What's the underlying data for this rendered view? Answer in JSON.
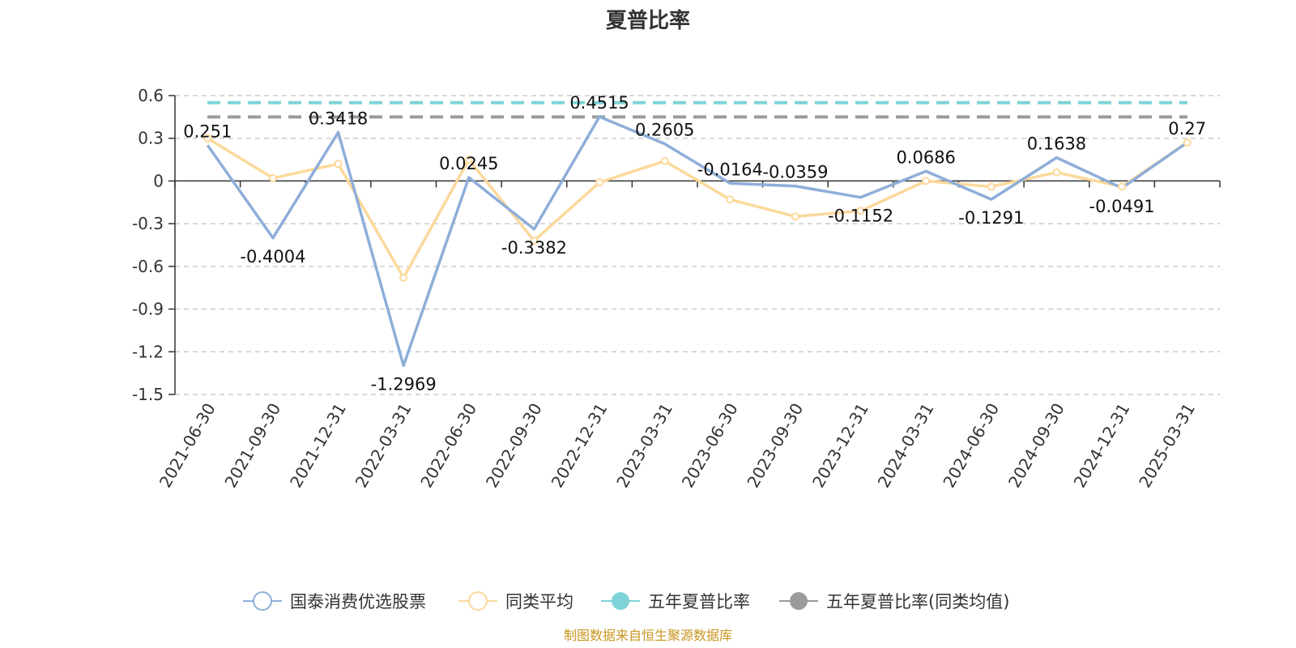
{
  "chart_data": {
    "type": "line",
    "title": "夏普比率",
    "categories": [
      "2021-06-30",
      "2021-09-30",
      "2021-12-31",
      "2022-03-31",
      "2022-06-30",
      "2022-09-30",
      "2022-12-31",
      "2023-03-31",
      "2023-06-30",
      "2023-09-30",
      "2023-12-31",
      "2024-03-31",
      "2024-06-30",
      "2024-09-30",
      "2024-12-31",
      "2025-03-31"
    ],
    "yticks": [
      "0.6",
      "0.3",
      "0",
      "-0.3",
      "-0.6",
      "-0.9",
      "-1.2",
      "-1.5"
    ],
    "ytick_values": [
      0.6,
      0.3,
      0,
      -0.3,
      -0.6,
      -0.9,
      -1.2,
      -1.5
    ],
    "ylim": [
      -1.5,
      0.6
    ],
    "grid": true,
    "legend_position": "bottom",
    "series": [
      {
        "name": "国泰消费优选股票",
        "color": "#8eaed9",
        "values": [
          0.251,
          -0.4004,
          0.3418,
          -1.2969,
          0.0245,
          -0.3382,
          0.4515,
          0.2605,
          -0.0164,
          -0.0359,
          -0.1152,
          0.0686,
          -0.1291,
          0.1638,
          -0.0491,
          0.27
        ],
        "labels": [
          "0.251",
          "-0.4004",
          "0.3418",
          "-1.2969",
          "0.0245",
          "-0.3382",
          "0.4515",
          "0.2605",
          "-0.0164",
          "-0.0359",
          "-0.1152",
          "0.0686",
          "-0.1291",
          "0.1638",
          "-0.0491",
          "0.27"
        ]
      },
      {
        "name": "同类平均",
        "color": "#fbd99b",
        "values": [
          0.3,
          0.02,
          0.12,
          -0.68,
          0.15,
          -0.42,
          -0.01,
          0.14,
          -0.13,
          -0.25,
          -0.21,
          0.0,
          -0.04,
          0.06,
          -0.04,
          0.27
        ]
      },
      {
        "name": "五年夏普比率",
        "color": "#7fd3d8",
        "value": 0.55,
        "style": "dashed"
      },
      {
        "name": "五年夏普比率(同类均值)",
        "color": "#9b9b9b",
        "value": 0.45,
        "style": "dashed"
      }
    ]
  },
  "source": {
    "text": "制图数据来自恒生聚源数据库",
    "color": "#c9961e"
  }
}
